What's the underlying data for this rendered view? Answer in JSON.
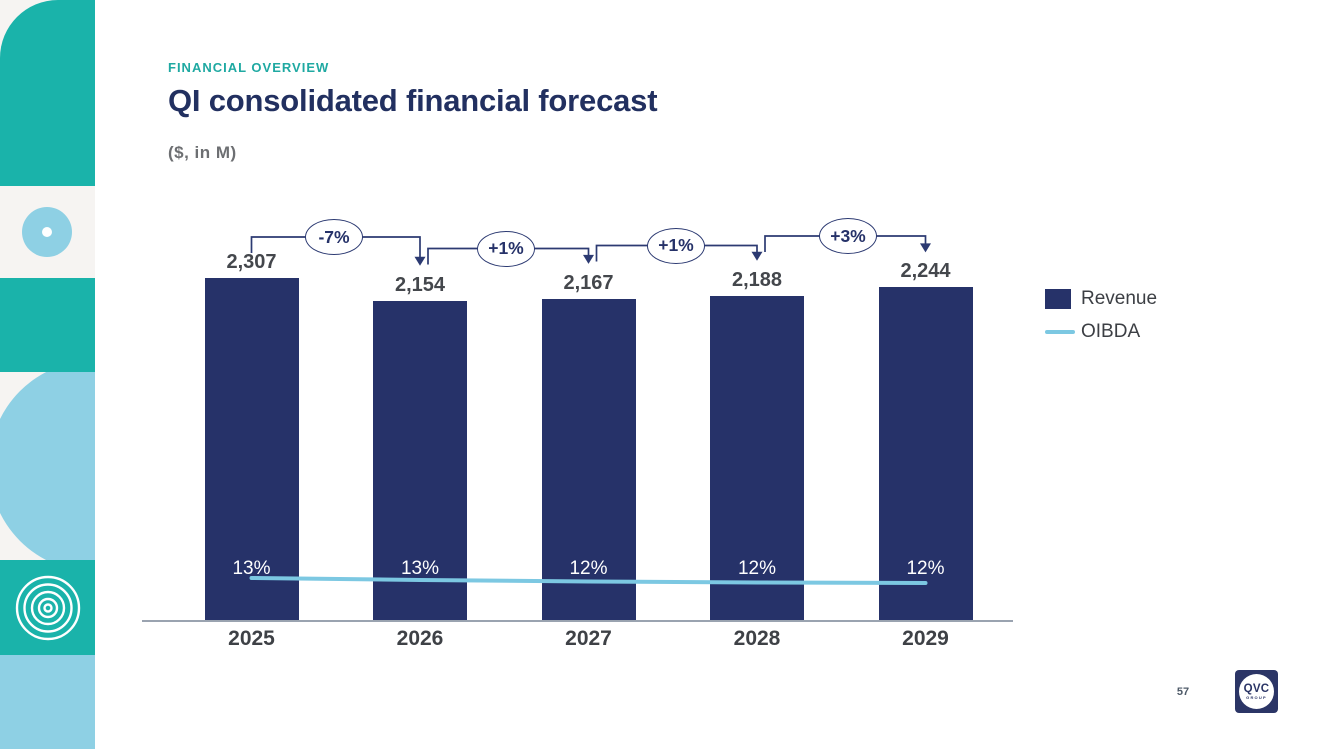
{
  "slide": {
    "eyebrow": "FINANCIAL OVERVIEW",
    "title": "QI consolidated financial forecast",
    "subtitle": "($, in M)",
    "page_number": "57"
  },
  "logo": {
    "text": "QVC",
    "subtext": "GROUP"
  },
  "legend": {
    "revenue": "Revenue",
    "oibda": "OIBDA"
  },
  "colors": {
    "teal": "#1ab3aa",
    "light_blue": "#8ed0e4",
    "navy_bar": "#263269",
    "title_navy": "#223060",
    "oibda_line": "#7cc8e2",
    "connector_navy": "#2c3a72",
    "axis_gray": "#9aa3b0"
  },
  "chart_data": {
    "type": "bar",
    "title": "QI consolidated financial forecast",
    "units": "($, in M)",
    "categories": [
      "2025",
      "2026",
      "2027",
      "2028",
      "2029"
    ],
    "series": [
      {
        "name": "Revenue",
        "type": "bar",
        "values": [
          2307,
          2154,
          2167,
          2188,
          2244
        ]
      },
      {
        "name": "OIBDA",
        "type": "line",
        "margin_labels": [
          "13%",
          "13%",
          "12%",
          "12%",
          "12%"
        ]
      }
    ],
    "growth_annotations": [
      "-7%",
      "+1%",
      "+1%",
      "+3%"
    ],
    "ylim": [
      0,
      2450
    ],
    "grid": false,
    "legend_position": "right"
  }
}
